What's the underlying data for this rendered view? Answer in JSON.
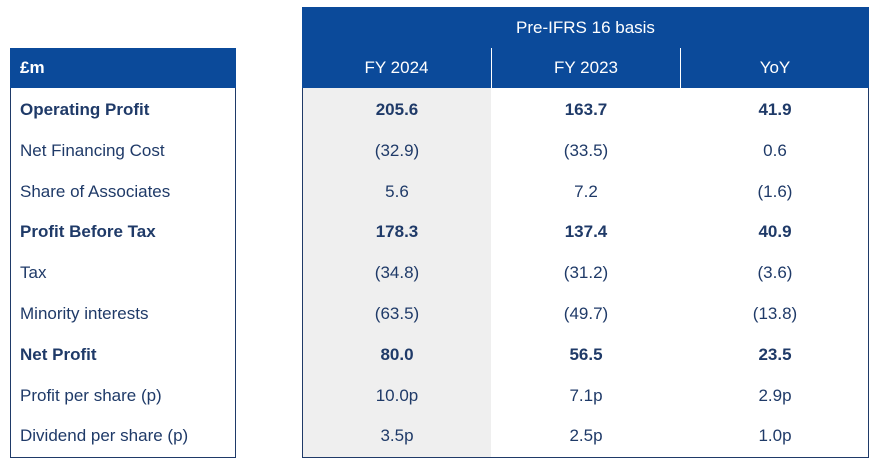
{
  "table": {
    "basis_header": "Pre-IFRS 16 basis",
    "unit_header": "£m",
    "columns": [
      "FY 2024",
      "FY 2023",
      "YoY"
    ],
    "rows": [
      {
        "label": "Operating Profit",
        "bold": true,
        "values": [
          "205.6",
          "163.7",
          "41.9"
        ]
      },
      {
        "label": "Net Financing Cost",
        "bold": false,
        "values": [
          "(32.9)",
          "(33.5)",
          "0.6"
        ]
      },
      {
        "label": "Share of Associates",
        "bold": false,
        "values": [
          "5.6",
          "7.2",
          "(1.6)"
        ]
      },
      {
        "label": "Profit Before Tax",
        "bold": true,
        "values": [
          "178.3",
          "137.4",
          "40.9"
        ]
      },
      {
        "label": "Tax",
        "bold": false,
        "values": [
          "(34.8)",
          "(31.2)",
          "(3.6)"
        ]
      },
      {
        "label": "Minority interests",
        "bold": false,
        "values": [
          "(63.5)",
          "(49.7)",
          "(13.8)"
        ]
      },
      {
        "label": "Net Profit",
        "bold": true,
        "values": [
          "80.0",
          "56.5",
          "23.5"
        ]
      },
      {
        "label": "Profit per share (p)",
        "bold": false,
        "values": [
          "10.0p",
          "7.1p",
          "2.9p"
        ]
      },
      {
        "label": "Dividend per share (p)",
        "bold": false,
        "values": [
          "3.5p",
          "2.5p",
          "1.0p"
        ]
      }
    ]
  }
}
